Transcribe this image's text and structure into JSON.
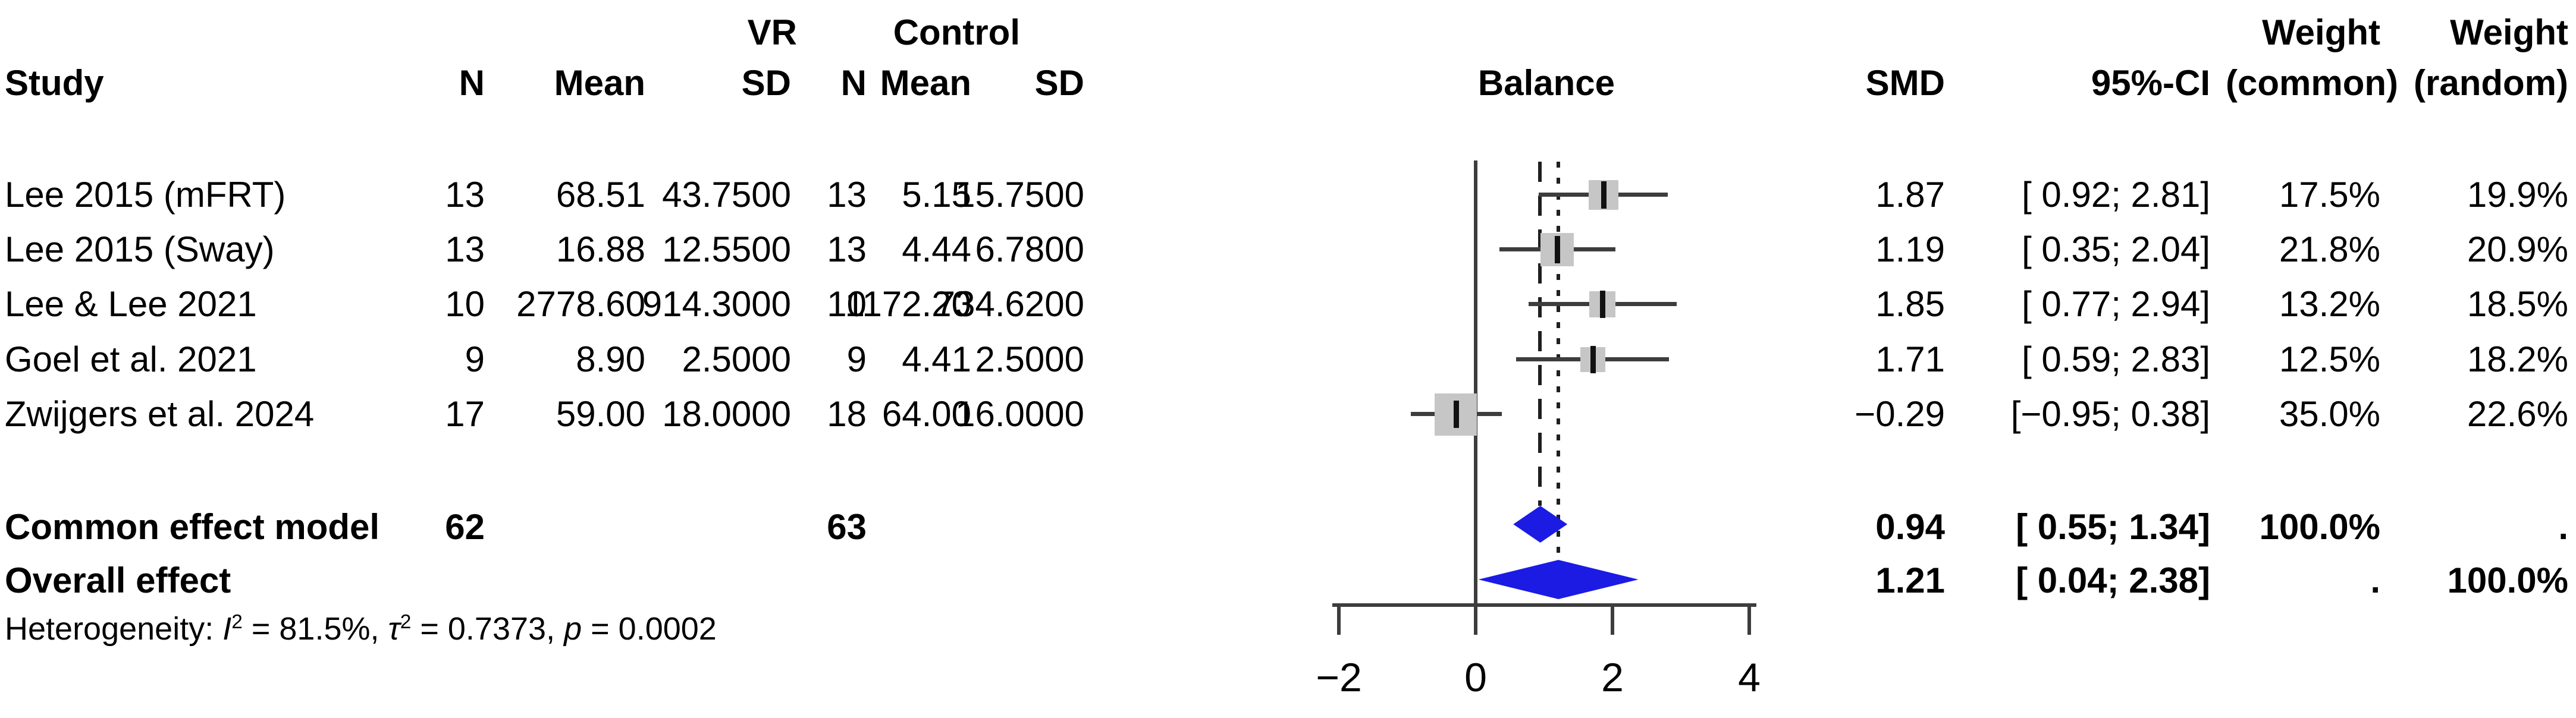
{
  "figure": {
    "background": "#ffffff"
  },
  "colors": {
    "diamond_blue": "#1b1be4",
    "square_grey": "#c6c6c6",
    "line_dark": "#3d3d3d",
    "ref_line": "#1f1f1f",
    "text": "#000000"
  },
  "headers": {
    "group_vr": "VR",
    "group_control": "Control",
    "study": "Study",
    "n": "N",
    "mean": "Mean",
    "sd": "SD",
    "balance": "Balance",
    "smd": "SMD",
    "ci": "95%-CI",
    "weight": "Weight",
    "weight_common_sub": "(common)",
    "weight_random_sub": "(random)"
  },
  "rows": [
    {
      "study": "Lee 2015 (mFRT)",
      "n1": "13",
      "mean1": "68.51",
      "sd1": "43.7500",
      "n2": "13",
      "mean2": "5.15",
      "sd2": "15.7500",
      "smd": "1.87",
      "ci": "[ 0.92; 2.81]",
      "wc": "17.5%",
      "wr": "19.9%"
    },
    {
      "study": "Lee 2015 (Sway)",
      "n1": "13",
      "mean1": "16.88",
      "sd1": "12.5500",
      "n2": "13",
      "mean2": "4.44",
      "sd2": "6.7800",
      "smd": "1.19",
      "ci": "[ 0.35; 2.04]",
      "wc": "21.8%",
      "wr": "20.9%"
    },
    {
      "study": "Lee & Lee 2021",
      "n1": "10",
      "mean1": "2778.60",
      "sd1": "914.3000",
      "n2": "10",
      "mean2": "1172.20",
      "sd2": "734.6200",
      "smd": "1.85",
      "ci": "[ 0.77; 2.94]",
      "wc": "13.2%",
      "wr": "18.5%"
    },
    {
      "study": "Goel et al. 2021",
      "n1": "9",
      "mean1": "8.90",
      "sd1": "2.5000",
      "n2": "9",
      "mean2": "4.41",
      "sd2": "2.5000",
      "smd": "1.71",
      "ci": "[ 0.59; 2.83]",
      "wc": "12.5%",
      "wr": "18.2%"
    },
    {
      "study": "Zwijgers et al. 2024",
      "n1": "17",
      "mean1": "59.00",
      "sd1": "18.0000",
      "n2": "18",
      "mean2": "64.00",
      "sd2": "16.0000",
      "smd": "−0.29",
      "ci": "[−0.95; 0.38]",
      "wc": "35.0%",
      "wr": "22.6%"
    }
  ],
  "summary_rows": [
    {
      "label": "Common effect model",
      "n1": "62",
      "n2": "63",
      "smd": "0.94",
      "ci": "[ 0.55; 1.34]",
      "wc": "100.0%",
      "wr": "."
    },
    {
      "label": "Overall effect",
      "n1": "",
      "n2": "",
      "smd": "1.21",
      "ci": "[ 0.04; 2.38]",
      "wc": ".",
      "wr": "100.0%"
    }
  ],
  "heterogeneity": {
    "prefix": "Heterogeneity: ",
    "i_sym": "I",
    "i_sup": "2",
    "i_rest": " = 81.5%, ",
    "tau_sym": "τ",
    "tau_sup": "2",
    "tau_rest": " = 0.7373, ",
    "p_sym": "p",
    "p_rest": " = 0.0002"
  },
  "chart_data": {
    "type": "forest",
    "outcome_label": "Balance",
    "effect_measure": "SMD",
    "x_ticks": [
      -2,
      0,
      2,
      4
    ],
    "xlim": [
      -2.1,
      4.1
    ],
    "reference_lines": {
      "null_effect": 0,
      "common_effect": 0.94,
      "random_effect": 1.21
    },
    "studies": [
      {
        "study": "Lee 2015 (mFRT)",
        "vr": {
          "n": 13,
          "mean": 68.51,
          "sd": 43.75
        },
        "control": {
          "n": 13,
          "mean": 5.15,
          "sd": 15.75
        },
        "smd": 1.87,
        "ci": [
          0.92,
          2.81
        ],
        "weight_common_pct": 17.5,
        "weight_random_pct": 19.9
      },
      {
        "study": "Lee 2015 (Sway)",
        "vr": {
          "n": 13,
          "mean": 16.88,
          "sd": 12.55
        },
        "control": {
          "n": 13,
          "mean": 4.44,
          "sd": 6.78
        },
        "smd": 1.19,
        "ci": [
          0.35,
          2.04
        ],
        "weight_common_pct": 21.8,
        "weight_random_pct": 20.9
      },
      {
        "study": "Lee & Lee 2021",
        "vr": {
          "n": 10,
          "mean": 2778.6,
          "sd": 914.3
        },
        "control": {
          "n": 10,
          "mean": 1172.2,
          "sd": 734.62
        },
        "smd": 1.85,
        "ci": [
          0.77,
          2.94
        ],
        "weight_common_pct": 13.2,
        "weight_random_pct": 18.5
      },
      {
        "study": "Goel et al. 2021",
        "vr": {
          "n": 9,
          "mean": 8.9,
          "sd": 2.5
        },
        "control": {
          "n": 9,
          "mean": 4.41,
          "sd": 2.5
        },
        "smd": 1.71,
        "ci": [
          0.59,
          2.83
        ],
        "weight_common_pct": 12.5,
        "weight_random_pct": 18.2
      },
      {
        "study": "Zwijgers et al. 2024",
        "vr": {
          "n": 17,
          "mean": 59.0,
          "sd": 18.0
        },
        "control": {
          "n": 18,
          "mean": 64.0,
          "sd": 16.0
        },
        "smd": -0.29,
        "ci": [
          -0.95,
          0.38
        ],
        "weight_common_pct": 35.0,
        "weight_random_pct": 22.6
      }
    ],
    "summaries": [
      {
        "label": "Common effect model",
        "n_vr": 62,
        "n_control": 63,
        "smd": 0.94,
        "ci": [
          0.55,
          1.34
        ],
        "weight_common_pct": 100.0
      },
      {
        "label": "Overall effect",
        "smd": 1.21,
        "ci": [
          0.04,
          2.38
        ],
        "weight_random_pct": 100.0
      }
    ],
    "heterogeneity": {
      "I2_pct": 81.5,
      "tau2": 0.7373,
      "p": 0.0002
    }
  }
}
